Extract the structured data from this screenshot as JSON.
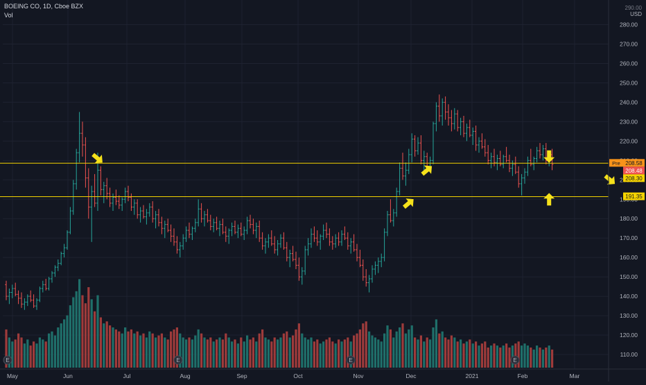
{
  "header": {
    "title": "BOEING CO, 1D, Cboe BZX",
    "vol_label": "Vol",
    "currency": "USD"
  },
  "colors": {
    "background": "#131722",
    "up": "#26a69a",
    "down": "#ef5350",
    "vol_up": "#1f6f6a",
    "vol_down": "#9e3b3b",
    "hline": "#f5d400",
    "arrow": "#f5e11b",
    "pre_tag": "#f7931a",
    "last_tag": "#ef5350"
  },
  "chart_data": {
    "type": "candlestick",
    "symbol": "BOEING CO",
    "interval": "1D",
    "exchange": "Cboe BZX",
    "x_ticks": [
      "May",
      "Jun",
      "Jul",
      "Aug",
      "Sep",
      "Oct",
      "Nov",
      "Dec",
      "2021",
      "Feb",
      "Mar"
    ],
    "y_ticks": [
      110,
      120,
      130,
      140,
      150,
      160,
      170,
      180,
      190,
      200,
      210,
      220,
      230,
      240,
      250,
      260,
      270,
      280
    ],
    "y_top_partial": "290.00",
    "ylim": [
      105,
      292
    ],
    "horizontal_lines": [
      208.58,
      191.35
    ],
    "price_tags": [
      {
        "label": "Pre",
        "value": "208.58",
        "style": "pre"
      },
      {
        "label": "",
        "value": "208.48",
        "style": "last"
      },
      {
        "label": "",
        "value": "208.30",
        "style": "hline"
      },
      {
        "label": "",
        "value": "191.35",
        "style": "hline"
      }
    ],
    "annotations": [
      {
        "name": "arrow-jun-top",
        "direction": "down-right",
        "date_index": 30,
        "price": 211
      },
      {
        "name": "arrow-nov-bottom",
        "direction": "up-right",
        "date_index": 132,
        "price": 188
      },
      {
        "name": "arrow-nov-mid",
        "direction": "up-right",
        "date_index": 138,
        "price": 205
      },
      {
        "name": "arrow-jan-top",
        "direction": "down",
        "date_index": 178,
        "price": 212
      },
      {
        "name": "arrow-feb-bottom",
        "direction": "up",
        "date_index": 178,
        "price": 190
      },
      {
        "name": "arrow-feb-end",
        "direction": "down-right",
        "date_index": 198,
        "price": 200
      }
    ],
    "earnings_markers": [
      "E",
      "E",
      "E",
      "E"
    ],
    "ohlc": [
      [
        146,
        148,
        138,
        140
      ],
      [
        140,
        144,
        136,
        142
      ],
      [
        142,
        146,
        139,
        144
      ],
      [
        144,
        147,
        140,
        141
      ],
      [
        141,
        143,
        136,
        139
      ],
      [
        139,
        142,
        134,
        136
      ],
      [
        136,
        139,
        133,
        137
      ],
      [
        137,
        141,
        135,
        140
      ],
      [
        140,
        143,
        137,
        138
      ],
      [
        138,
        141,
        134,
        135
      ],
      [
        135,
        139,
        133,
        138
      ],
      [
        138,
        145,
        137,
        144
      ],
      [
        144,
        148,
        142,
        146
      ],
      [
        146,
        149,
        143,
        144
      ],
      [
        144,
        150,
        143,
        149
      ],
      [
        149,
        153,
        147,
        152
      ],
      [
        152,
        156,
        150,
        155
      ],
      [
        155,
        159,
        153,
        157
      ],
      [
        157,
        163,
        156,
        162
      ],
      [
        162,
        167,
        160,
        165
      ],
      [
        165,
        174,
        164,
        173
      ],
      [
        173,
        186,
        172,
        184
      ],
      [
        184,
        200,
        182,
        198
      ],
      [
        198,
        216,
        195,
        214
      ],
      [
        214,
        235,
        209,
        224
      ],
      [
        224,
        230,
        212,
        218
      ],
      [
        218,
        222,
        196,
        201
      ],
      [
        201,
        206,
        180,
        186
      ],
      [
        186,
        197,
        168,
        194
      ],
      [
        194,
        203,
        186,
        188
      ],
      [
        188,
        214,
        184,
        205
      ],
      [
        205,
        207,
        192,
        195
      ],
      [
        195,
        199,
        188,
        197
      ],
      [
        197,
        201,
        190,
        193
      ],
      [
        193,
        196,
        186,
        188
      ],
      [
        188,
        193,
        184,
        191
      ],
      [
        191,
        195,
        187,
        189
      ],
      [
        189,
        192,
        185,
        187
      ],
      [
        187,
        191,
        184,
        190
      ],
      [
        190,
        196,
        188,
        194
      ],
      [
        194,
        197,
        189,
        191
      ],
      [
        191,
        193,
        184,
        186
      ],
      [
        186,
        190,
        182,
        188
      ],
      [
        188,
        190,
        180,
        182
      ],
      [
        182,
        186,
        178,
        184
      ],
      [
        184,
        187,
        180,
        181
      ],
      [
        181,
        185,
        177,
        183
      ],
      [
        183,
        188,
        181,
        186
      ],
      [
        186,
        189,
        178,
        180
      ],
      [
        180,
        184,
        175,
        182
      ],
      [
        182,
        185,
        176,
        178
      ],
      [
        178,
        181,
        172,
        175
      ],
      [
        175,
        179,
        170,
        177
      ],
      [
        177,
        180,
        173,
        174
      ],
      [
        174,
        177,
        168,
        171
      ],
      [
        171,
        175,
        166,
        168
      ],
      [
        168,
        171,
        162,
        164
      ],
      [
        164,
        168,
        160,
        166
      ],
      [
        166,
        172,
        164,
        170
      ],
      [
        170,
        176,
        168,
        174
      ],
      [
        174,
        178,
        170,
        172
      ],
      [
        172,
        176,
        169,
        175
      ],
      [
        175,
        180,
        173,
        178
      ],
      [
        178,
        190,
        176,
        185
      ],
      [
        185,
        188,
        178,
        180
      ],
      [
        180,
        184,
        176,
        182
      ],
      [
        182,
        185,
        178,
        179
      ],
      [
        179,
        182,
        174,
        176
      ],
      [
        176,
        180,
        173,
        178
      ],
      [
        178,
        181,
        174,
        175
      ],
      [
        175,
        179,
        171,
        177
      ],
      [
        177,
        180,
        172,
        173
      ],
      [
        173,
        176,
        168,
        171
      ],
      [
        171,
        175,
        167,
        174
      ],
      [
        174,
        178,
        171,
        176
      ],
      [
        176,
        179,
        172,
        173
      ],
      [
        173,
        177,
        170,
        175
      ],
      [
        175,
        178,
        171,
        172
      ],
      [
        172,
        176,
        169,
        174
      ],
      [
        174,
        181,
        172,
        179
      ],
      [
        179,
        182,
        175,
        177
      ],
      [
        177,
        180,
        172,
        174
      ],
      [
        174,
        178,
        170,
        176
      ],
      [
        176,
        179,
        168,
        170
      ],
      [
        170,
        173,
        164,
        166
      ],
      [
        166,
        170,
        162,
        168
      ],
      [
        168,
        172,
        165,
        170
      ],
      [
        170,
        174,
        166,
        167
      ],
      [
        167,
        171,
        162,
        164
      ],
      [
        164,
        169,
        161,
        167
      ],
      [
        167,
        172,
        165,
        170
      ],
      [
        170,
        173,
        164,
        165
      ],
      [
        165,
        168,
        158,
        160
      ],
      [
        160,
        164,
        155,
        162
      ],
      [
        162,
        166,
        158,
        159
      ],
      [
        159,
        163,
        154,
        156
      ],
      [
        156,
        160,
        148,
        150
      ],
      [
        150,
        155,
        146,
        153
      ],
      [
        153,
        166,
        151,
        164
      ],
      [
        164,
        170,
        161,
        167
      ],
      [
        167,
        175,
        165,
        172
      ],
      [
        172,
        176,
        168,
        170
      ],
      [
        170,
        174,
        166,
        168
      ],
      [
        168,
        172,
        164,
        171
      ],
      [
        171,
        177,
        169,
        174
      ],
      [
        174,
        178,
        170,
        172
      ],
      [
        172,
        175,
        166,
        168
      ],
      [
        168,
        171,
        164,
        167
      ],
      [
        167,
        172,
        165,
        170
      ],
      [
        170,
        173,
        166,
        168
      ],
      [
        168,
        174,
        166,
        172
      ],
      [
        172,
        176,
        169,
        170
      ],
      [
        170,
        173,
        164,
        166
      ],
      [
        166,
        170,
        162,
        168
      ],
      [
        168,
        172,
        163,
        164
      ],
      [
        164,
        167,
        158,
        160
      ],
      [
        160,
        164,
        155,
        156
      ],
      [
        156,
        159,
        148,
        150
      ],
      [
        150,
        154,
        145,
        147
      ],
      [
        147,
        151,
        142,
        149
      ],
      [
        149,
        156,
        147,
        154
      ],
      [
        154,
        158,
        151,
        156
      ],
      [
        156,
        160,
        152,
        158
      ],
      [
        158,
        162,
        155,
        160
      ],
      [
        160,
        175,
        158,
        173
      ],
      [
        173,
        184,
        171,
        182
      ],
      [
        182,
        190,
        178,
        179
      ],
      [
        179,
        185,
        176,
        183
      ],
      [
        183,
        196,
        181,
        194
      ],
      [
        194,
        209,
        192,
        206
      ],
      [
        206,
        214,
        200,
        202
      ],
      [
        202,
        209,
        197,
        205
      ],
      [
        205,
        216,
        203,
        213
      ],
      [
        213,
        224,
        209,
        221
      ],
      [
        221,
        223,
        212,
        215
      ],
      [
        215,
        222,
        213,
        219
      ],
      [
        219,
        223,
        208,
        210
      ],
      [
        210,
        215,
        205,
        212
      ],
      [
        212,
        214,
        204,
        206
      ],
      [
        206,
        212,
        205,
        210
      ],
      [
        210,
        230,
        208,
        229
      ],
      [
        229,
        240,
        225,
        238
      ],
      [
        238,
        244,
        230,
        233
      ],
      [
        233,
        242,
        228,
        240
      ],
      [
        240,
        243,
        231,
        235
      ],
      [
        235,
        239,
        228,
        232
      ],
      [
        232,
        236,
        225,
        229
      ],
      [
        229,
        237,
        226,
        234
      ],
      [
        234,
        236,
        225,
        227
      ],
      [
        227,
        232,
        223,
        230
      ],
      [
        230,
        233,
        222,
        224
      ],
      [
        224,
        229,
        220,
        227
      ],
      [
        227,
        231,
        222,
        223
      ],
      [
        223,
        227,
        218,
        225
      ],
      [
        225,
        228,
        215,
        218
      ],
      [
        218,
        222,
        214,
        220
      ],
      [
        220,
        224,
        216,
        217
      ],
      [
        217,
        221,
        212,
        214
      ],
      [
        214,
        218,
        208,
        210
      ],
      [
        210,
        214,
        206,
        212
      ],
      [
        212,
        216,
        207,
        209
      ],
      [
        209,
        213,
        205,
        211
      ],
      [
        211,
        215,
        207,
        208
      ],
      [
        208,
        213,
        206,
        212
      ],
      [
        212,
        217,
        209,
        210
      ],
      [
        210,
        213,
        204,
        206
      ],
      [
        206,
        210,
        202,
        208
      ],
      [
        208,
        212,
        203,
        204
      ],
      [
        204,
        207,
        196,
        198
      ],
      [
        198,
        203,
        192,
        201
      ],
      [
        201,
        206,
        198,
        204
      ],
      [
        204,
        212,
        202,
        210
      ],
      [
        210,
        216,
        207,
        208
      ],
      [
        208,
        212,
        205,
        211
      ],
      [
        211,
        217,
        209,
        215
      ],
      [
        215,
        219,
        211,
        213
      ],
      [
        213,
        218,
        210,
        216
      ],
      [
        216,
        219,
        208,
        210
      ],
      [
        210,
        215,
        207,
        213
      ],
      [
        213,
        216,
        205,
        208
      ]
    ],
    "volume": [
      38,
      30,
      26,
      28,
      34,
      30,
      24,
      28,
      22,
      26,
      24,
      30,
      28,
      26,
      34,
      36,
      32,
      40,
      44,
      48,
      52,
      62,
      70,
      76,
      88,
      72,
      64,
      80,
      68,
      56,
      72,
      50,
      44,
      46,
      42,
      40,
      38,
      36,
      34,
      40,
      36,
      38,
      34,
      36,
      32,
      34,
      30,
      36,
      34,
      30,
      32,
      34,
      30,
      28,
      36,
      38,
      40,
      34,
      30,
      28,
      30,
      28,
      32,
      38,
      34,
      30,
      28,
      30,
      26,
      28,
      30,
      28,
      34,
      30,
      26,
      28,
      24,
      30,
      26,
      32,
      28,
      30,
      26,
      34,
      38,
      30,
      28,
      26,
      30,
      28,
      30,
      34,
      36,
      30,
      32,
      38,
      44,
      34,
      30,
      28,
      30,
      26,
      28,
      24,
      26,
      28,
      30,
      26,
      24,
      28,
      26,
      28,
      30,
      26,
      32,
      34,
      38,
      44,
      46,
      36,
      32,
      30,
      28,
      26,
      34,
      42,
      38,
      30,
      36,
      40,
      44,
      34,
      38,
      42,
      30,
      28,
      32,
      26,
      30,
      28,
      40,
      48,
      34,
      36,
      30,
      28,
      32,
      30,
      26,
      28,
      24,
      26,
      28,
      24,
      26,
      22,
      24,
      26,
      20,
      22,
      24,
      22,
      20,
      22,
      24,
      20,
      22,
      24,
      26,
      22,
      24,
      22,
      20,
      18,
      22,
      20,
      18,
      20,
      22,
      18
    ]
  }
}
